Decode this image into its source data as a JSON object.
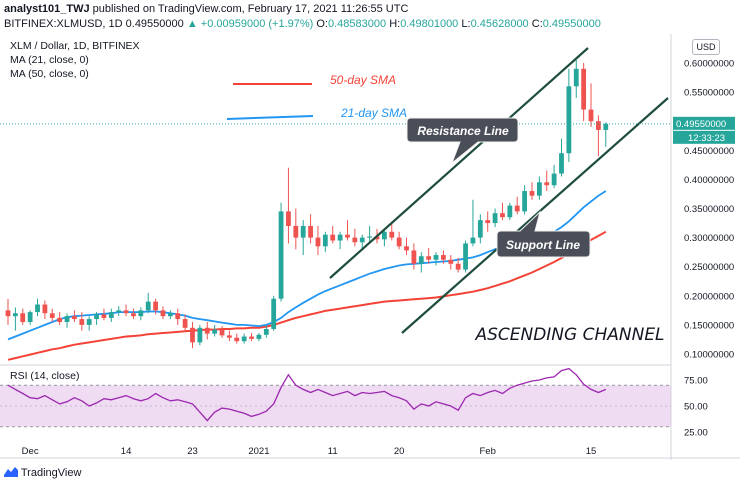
{
  "header": {
    "line1_user": "analyst101_TWJ",
    "line1_rest": "published on TradingView.com, February 17, 2021 11:26:55 UTC",
    "symbol": "BITFINEX:XLMUSD, 1D",
    "last": "0.49550000",
    "change": "▲ +0.00959000 (+1.97%)",
    "o_label": "O:",
    "o": "0.48583000",
    "h_label": "H:",
    "h": "0.49801000",
    "l_label": "L:",
    "l": "0.45628000",
    "c_label": "C:",
    "c": "0.49550000"
  },
  "legend": {
    "title": "XLM / Dollar, 1D, BITFINEX",
    "ma21": "MA (21, close, 0)",
    "ma50": "MA (50, close, 0)"
  },
  "rsi_label": "RSI (14, close)",
  "currency_button": "USD",
  "price_badge": {
    "value": "0.49550000",
    "countdown": "12:33:23"
  },
  "footer": {
    "brand": "TradingView"
  },
  "annotations": {
    "sma50": "50-day SMA",
    "sma21": "21-day SMA",
    "resistance": "Resistance Line",
    "support": "Support Line",
    "channel": "ASCENDING CHANNEL"
  },
  "colors": {
    "up": "#26a69a",
    "down": "#ef5350",
    "ma21": "#2196f3",
    "ma50": "#f44336",
    "channel": "#1e4d3f",
    "rsi_line": "#9c27b0",
    "rsi_band": "#e1bee7",
    "callout": "#4a4e58"
  },
  "chart_data": {
    "type": "candlestick",
    "ylim": [
      0.08,
      0.63
    ],
    "y_ticks": [
      "0.60000000",
      "0.55000000",
      "0.50000000",
      "0.45000000",
      "0.40000000",
      "0.35000000",
      "0.30000000",
      "0.25000000",
      "0.20000000",
      "0.15000000",
      "0.10000000"
    ],
    "x_ticks": [
      {
        "label": "Dec",
        "i": 3
      },
      {
        "label": "14",
        "i": 16
      },
      {
        "label": "23",
        "i": 25
      },
      {
        "label": "2021",
        "i": 34
      },
      {
        "label": "11",
        "i": 44
      },
      {
        "label": "20",
        "i": 53
      },
      {
        "label": "Feb",
        "i": 65
      },
      {
        "label": "15",
        "i": 79
      }
    ],
    "candles": [
      {
        "o": 0.175,
        "h": 0.195,
        "l": 0.15,
        "c": 0.165
      },
      {
        "o": 0.165,
        "h": 0.18,
        "l": 0.14,
        "c": 0.17
      },
      {
        "o": 0.17,
        "h": 0.178,
        "l": 0.15,
        "c": 0.155
      },
      {
        "o": 0.155,
        "h": 0.175,
        "l": 0.15,
        "c": 0.172
      },
      {
        "o": 0.172,
        "h": 0.195,
        "l": 0.165,
        "c": 0.185
      },
      {
        "o": 0.185,
        "h": 0.192,
        "l": 0.16,
        "c": 0.17
      },
      {
        "o": 0.17,
        "h": 0.178,
        "l": 0.155,
        "c": 0.162
      },
      {
        "o": 0.162,
        "h": 0.172,
        "l": 0.15,
        "c": 0.155
      },
      {
        "o": 0.155,
        "h": 0.17,
        "l": 0.145,
        "c": 0.165
      },
      {
        "o": 0.165,
        "h": 0.175,
        "l": 0.155,
        "c": 0.16
      },
      {
        "o": 0.16,
        "h": 0.172,
        "l": 0.14,
        "c": 0.15
      },
      {
        "o": 0.15,
        "h": 0.165,
        "l": 0.14,
        "c": 0.16
      },
      {
        "o": 0.16,
        "h": 0.172,
        "l": 0.15,
        "c": 0.168
      },
      {
        "o": 0.168,
        "h": 0.178,
        "l": 0.158,
        "c": 0.162
      },
      {
        "o": 0.162,
        "h": 0.178,
        "l": 0.155,
        "c": 0.172
      },
      {
        "o": 0.172,
        "h": 0.182,
        "l": 0.165,
        "c": 0.175
      },
      {
        "o": 0.175,
        "h": 0.185,
        "l": 0.165,
        "c": 0.17
      },
      {
        "o": 0.17,
        "h": 0.178,
        "l": 0.16,
        "c": 0.165
      },
      {
        "o": 0.165,
        "h": 0.18,
        "l": 0.158,
        "c": 0.175
      },
      {
        "o": 0.175,
        "h": 0.205,
        "l": 0.17,
        "c": 0.19
      },
      {
        "o": 0.19,
        "h": 0.195,
        "l": 0.168,
        "c": 0.175
      },
      {
        "o": 0.175,
        "h": 0.182,
        "l": 0.16,
        "c": 0.165
      },
      {
        "o": 0.165,
        "h": 0.175,
        "l": 0.16,
        "c": 0.17
      },
      {
        "o": 0.17,
        "h": 0.178,
        "l": 0.15,
        "c": 0.16
      },
      {
        "o": 0.16,
        "h": 0.168,
        "l": 0.14,
        "c": 0.145
      },
      {
        "o": 0.145,
        "h": 0.155,
        "l": 0.11,
        "c": 0.12
      },
      {
        "o": 0.12,
        "h": 0.15,
        "l": 0.115,
        "c": 0.145
      },
      {
        "o": 0.145,
        "h": 0.155,
        "l": 0.125,
        "c": 0.135
      },
      {
        "o": 0.135,
        "h": 0.15,
        "l": 0.13,
        "c": 0.142
      },
      {
        "o": 0.142,
        "h": 0.148,
        "l": 0.128,
        "c": 0.132
      },
      {
        "o": 0.132,
        "h": 0.14,
        "l": 0.122,
        "c": 0.128
      },
      {
        "o": 0.128,
        "h": 0.135,
        "l": 0.118,
        "c": 0.122
      },
      {
        "o": 0.122,
        "h": 0.135,
        "l": 0.118,
        "c": 0.13
      },
      {
        "o": 0.13,
        "h": 0.136,
        "l": 0.122,
        "c": 0.126
      },
      {
        "o": 0.126,
        "h": 0.136,
        "l": 0.122,
        "c": 0.133
      },
      {
        "o": 0.133,
        "h": 0.15,
        "l": 0.128,
        "c": 0.143
      },
      {
        "o": 0.143,
        "h": 0.2,
        "l": 0.14,
        "c": 0.195
      },
      {
        "o": 0.195,
        "h": 0.36,
        "l": 0.19,
        "c": 0.345
      },
      {
        "o": 0.345,
        "h": 0.42,
        "l": 0.29,
        "c": 0.32
      },
      {
        "o": 0.32,
        "h": 0.35,
        "l": 0.28,
        "c": 0.3
      },
      {
        "o": 0.3,
        "h": 0.33,
        "l": 0.27,
        "c": 0.32
      },
      {
        "o": 0.32,
        "h": 0.34,
        "l": 0.29,
        "c": 0.3
      },
      {
        "o": 0.3,
        "h": 0.32,
        "l": 0.27,
        "c": 0.285
      },
      {
        "o": 0.285,
        "h": 0.31,
        "l": 0.275,
        "c": 0.305
      },
      {
        "o": 0.305,
        "h": 0.32,
        "l": 0.29,
        "c": 0.295
      },
      {
        "o": 0.295,
        "h": 0.31,
        "l": 0.28,
        "c": 0.305
      },
      {
        "o": 0.305,
        "h": 0.33,
        "l": 0.295,
        "c": 0.3
      },
      {
        "o": 0.3,
        "h": 0.315,
        "l": 0.285,
        "c": 0.292
      },
      {
        "o": 0.292,
        "h": 0.305,
        "l": 0.28,
        "c": 0.3
      },
      {
        "o": 0.3,
        "h": 0.32,
        "l": 0.292,
        "c": 0.302
      },
      {
        "o": 0.302,
        "h": 0.315,
        "l": 0.29,
        "c": 0.297
      },
      {
        "o": 0.297,
        "h": 0.315,
        "l": 0.285,
        "c": 0.31
      },
      {
        "o": 0.31,
        "h": 0.325,
        "l": 0.295,
        "c": 0.3
      },
      {
        "o": 0.3,
        "h": 0.31,
        "l": 0.28,
        "c": 0.285
      },
      {
        "o": 0.285,
        "h": 0.3,
        "l": 0.27,
        "c": 0.278
      },
      {
        "o": 0.278,
        "h": 0.29,
        "l": 0.245,
        "c": 0.255
      },
      {
        "o": 0.255,
        "h": 0.275,
        "l": 0.24,
        "c": 0.268
      },
      {
        "o": 0.268,
        "h": 0.282,
        "l": 0.255,
        "c": 0.262
      },
      {
        "o": 0.262,
        "h": 0.275,
        "l": 0.252,
        "c": 0.27
      },
      {
        "o": 0.27,
        "h": 0.278,
        "l": 0.255,
        "c": 0.262
      },
      {
        "o": 0.262,
        "h": 0.27,
        "l": 0.245,
        "c": 0.255
      },
      {
        "o": 0.255,
        "h": 0.265,
        "l": 0.24,
        "c": 0.245
      },
      {
        "o": 0.245,
        "h": 0.295,
        "l": 0.24,
        "c": 0.29
      },
      {
        "o": 0.29,
        "h": 0.365,
        "l": 0.285,
        "c": 0.3
      },
      {
        "o": 0.3,
        "h": 0.34,
        "l": 0.29,
        "c": 0.33
      },
      {
        "o": 0.33,
        "h": 0.345,
        "l": 0.31,
        "c": 0.325
      },
      {
        "o": 0.325,
        "h": 0.35,
        "l": 0.318,
        "c": 0.342
      },
      {
        "o": 0.342,
        "h": 0.36,
        "l": 0.33,
        "c": 0.335
      },
      {
        "o": 0.335,
        "h": 0.36,
        "l": 0.33,
        "c": 0.355
      },
      {
        "o": 0.355,
        "h": 0.37,
        "l": 0.34,
        "c": 0.345
      },
      {
        "o": 0.345,
        "h": 0.39,
        "l": 0.34,
        "c": 0.38
      },
      {
        "o": 0.38,
        "h": 0.395,
        "l": 0.365,
        "c": 0.372
      },
      {
        "o": 0.372,
        "h": 0.405,
        "l": 0.365,
        "c": 0.395
      },
      {
        "o": 0.395,
        "h": 0.415,
        "l": 0.38,
        "c": 0.39
      },
      {
        "o": 0.39,
        "h": 0.425,
        "l": 0.385,
        "c": 0.41
      },
      {
        "o": 0.41,
        "h": 0.47,
        "l": 0.405,
        "c": 0.445
      },
      {
        "o": 0.445,
        "h": 0.59,
        "l": 0.43,
        "c": 0.56
      },
      {
        "o": 0.56,
        "h": 0.605,
        "l": 0.54,
        "c": 0.59
      },
      {
        "o": 0.59,
        "h": 0.6,
        "l": 0.5,
        "c": 0.52
      },
      {
        "o": 0.52,
        "h": 0.565,
        "l": 0.49,
        "c": 0.5
      },
      {
        "o": 0.5,
        "h": 0.51,
        "l": 0.44,
        "c": 0.485
      },
      {
        "o": 0.485,
        "h": 0.498,
        "l": 0.456,
        "c": 0.4955
      }
    ],
    "ma21": [
      0.125,
      0.13,
      0.135,
      0.14,
      0.145,
      0.15,
      0.155,
      0.16,
      0.163,
      0.165,
      0.166,
      0.167,
      0.168,
      0.169,
      0.17,
      0.172,
      0.172,
      0.172,
      0.172,
      0.173,
      0.173,
      0.172,
      0.17,
      0.168,
      0.166,
      0.162,
      0.16,
      0.158,
      0.156,
      0.154,
      0.152,
      0.15,
      0.15,
      0.149,
      0.148,
      0.15,
      0.155,
      0.162,
      0.172,
      0.18,
      0.188,
      0.195,
      0.202,
      0.208,
      0.213,
      0.218,
      0.223,
      0.228,
      0.233,
      0.238,
      0.242,
      0.246,
      0.249,
      0.252,
      0.254,
      0.255,
      0.256,
      0.257,
      0.258,
      0.259,
      0.26,
      0.262,
      0.264,
      0.266,
      0.27,
      0.275,
      0.28,
      0.285,
      0.29,
      0.295,
      0.298,
      0.3,
      0.303,
      0.307,
      0.31,
      0.318,
      0.328,
      0.34,
      0.352,
      0.362,
      0.372,
      0.38
    ],
    "ma50": [
      0.09,
      0.093,
      0.096,
      0.099,
      0.102,
      0.105,
      0.108,
      0.11,
      0.113,
      0.116,
      0.118,
      0.12,
      0.122,
      0.124,
      0.126,
      0.128,
      0.13,
      0.131,
      0.132,
      0.134,
      0.135,
      0.136,
      0.137,
      0.138,
      0.139,
      0.14,
      0.141,
      0.142,
      0.142,
      0.143,
      0.143,
      0.144,
      0.144,
      0.145,
      0.145,
      0.147,
      0.15,
      0.154,
      0.158,
      0.162,
      0.165,
      0.168,
      0.171,
      0.174,
      0.176,
      0.178,
      0.18,
      0.182,
      0.184,
      0.186,
      0.188,
      0.19,
      0.191,
      0.192,
      0.193,
      0.194,
      0.195,
      0.196,
      0.197,
      0.199,
      0.201,
      0.203,
      0.205,
      0.207,
      0.21,
      0.213,
      0.217,
      0.221,
      0.225,
      0.23,
      0.235,
      0.24,
      0.246,
      0.252,
      0.258,
      0.265,
      0.272,
      0.28,
      0.288,
      0.296,
      0.303,
      0.31
    ],
    "rsi": {
      "ylim": [
        20,
        90
      ],
      "ticks": [
        "75.00",
        "50.00",
        "25.00"
      ],
      "bands": [
        30,
        70
      ],
      "values": [
        70,
        66,
        62,
        58,
        57,
        60,
        56,
        52,
        54,
        58,
        55,
        50,
        53,
        57,
        56,
        58,
        60,
        57,
        55,
        57,
        62,
        58,
        55,
        56,
        54,
        52,
        44,
        36,
        44,
        48,
        47,
        45,
        43,
        40,
        42,
        45,
        52,
        68,
        80,
        70,
        66,
        63,
        66,
        63,
        60,
        62,
        64,
        60,
        63,
        62,
        63,
        64,
        60,
        58,
        55,
        47,
        52,
        50,
        54,
        52,
        50,
        46,
        58,
        62,
        60,
        63,
        65,
        62,
        67,
        70,
        72,
        74,
        75,
        77,
        78,
        84,
        86,
        80,
        71,
        66,
        63,
        66
      ]
    }
  }
}
